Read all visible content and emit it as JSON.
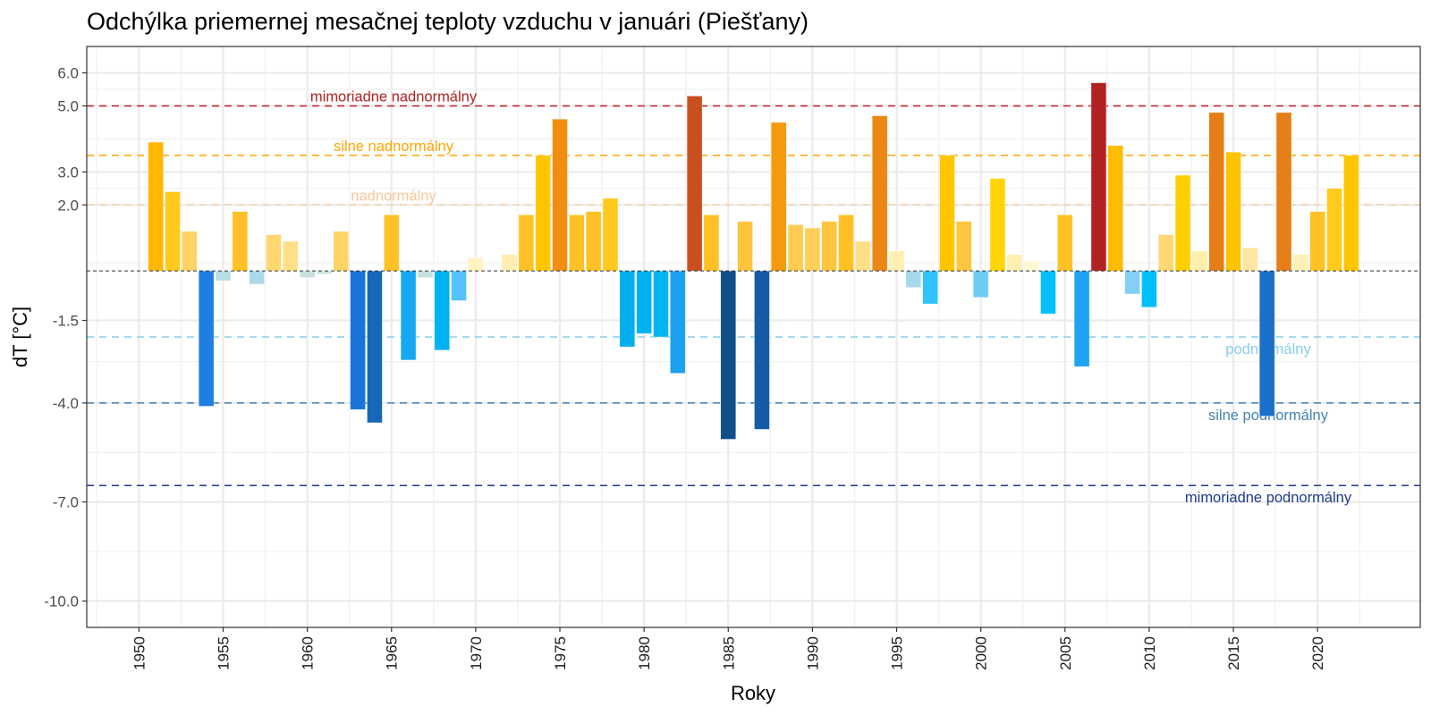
{
  "chart_data": {
    "type": "bar",
    "title": "Odchýlka priemernej mesačnej teploty vzduchu v januári (Piešťany)",
    "xlabel": "Roky",
    "ylabel": "dT [°C]",
    "xlim": [
      1946.9,
      2026.1
    ],
    "ylim": [
      -10.8,
      6.8
    ],
    "grid": true,
    "legend": "none",
    "x_ticks": [
      1950,
      1955,
      1960,
      1965,
      1970,
      1975,
      1980,
      1985,
      1990,
      1995,
      2000,
      2005,
      2010,
      2015,
      2020
    ],
    "y_ticks": [
      6.0,
      5.0,
      3.0,
      2.0,
      -1.5,
      -4.0,
      -7.0,
      -10.0
    ],
    "y_tick_labels": [
      "6.0",
      "5.0",
      "3.0",
      "2.0",
      "-1.5",
      "-4.0",
      "-7.0",
      "-10.0"
    ],
    "y_minor_grid": [
      5.5,
      4.0,
      2.5,
      0.25,
      -2.75,
      -5.5,
      -8.5
    ],
    "x": [
      1951,
      1952,
      1953,
      1954,
      1955,
      1956,
      1957,
      1958,
      1959,
      1960,
      1961,
      1962,
      1963,
      1964,
      1965,
      1966,
      1967,
      1968,
      1969,
      1970,
      1971,
      1972,
      1973,
      1974,
      1975,
      1976,
      1977,
      1978,
      1979,
      1980,
      1981,
      1982,
      1983,
      1984,
      1985,
      1986,
      1987,
      1988,
      1989,
      1990,
      1991,
      1992,
      1993,
      1994,
      1995,
      1996,
      1997,
      1998,
      1999,
      2000,
      2001,
      2002,
      2003,
      2004,
      2005,
      2006,
      2007,
      2008,
      2009,
      2010,
      2011,
      2012,
      2013,
      2014,
      2015,
      2016,
      2017,
      2018,
      2019,
      2020,
      2021,
      2022
    ],
    "values": [
      3.9,
      2.4,
      1.2,
      -4.1,
      -0.3,
      1.8,
      -0.4,
      1.1,
      0.9,
      -0.2,
      -0.1,
      1.2,
      -4.2,
      -4.6,
      1.7,
      -2.7,
      -0.2,
      -2.4,
      -0.9,
      0.4,
      0.0,
      0.5,
      1.7,
      3.5,
      4.6,
      1.7,
      1.8,
      2.2,
      -2.3,
      -1.9,
      -2.0,
      -3.1,
      5.3,
      1.7,
      -5.1,
      1.5,
      -4.8,
      4.5,
      1.4,
      1.3,
      1.5,
      1.7,
      0.9,
      4.7,
      0.6,
      -0.5,
      -1.0,
      3.5,
      1.5,
      -0.8,
      2.8,
      0.5,
      0.3,
      -1.3,
      1.7,
      -2.9,
      5.7,
      3.8,
      -0.7,
      -1.1,
      1.1,
      2.9,
      0.6,
      4.8,
      3.6,
      0.7,
      -4.4,
      4.8,
      0.5,
      1.8,
      2.5,
      3.5
    ],
    "colors": [
      "#FFB700",
      "#FFCA1C",
      "#FFD466",
      "#1E7FE0",
      "#B9DDE6",
      "#FFC125",
      "#ACD9E8",
      "#FFD771",
      "#FFDF88",
      "#C8E0E0",
      "#CCE6DC",
      "#FFD466",
      "#1A73D6",
      "#1767B9",
      "#FFC125",
      "#16A9F2",
      "#C5E0DE",
      "#00B2EE",
      "#54C3FB",
      "#FFF3BF",
      "#FFFFFF",
      "#FFEEB0",
      "#FFC125",
      "#FFC600",
      "#F08E12",
      "#FFC125",
      "#FFC125",
      "#FFC91E",
      "#00AFEC",
      "#00B3EF",
      "#00B5F2",
      "#1BA1F0",
      "#C94F1E",
      "#FFC125",
      "#104E89",
      "#FFC53D",
      "#165BA5",
      "#F5990E",
      "#FFCB50",
      "#FFCE5A",
      "#FFC53D",
      "#FFC125",
      "#FFDF88",
      "#EA8715",
      "#FFEFB1",
      "#A6D8EC",
      "#2FC2FE",
      "#FFC600",
      "#FFC53D",
      "#6ECBF5",
      "#FFD508",
      "#FFF0B2",
      "#FFF7D2",
      "#00BFFF",
      "#FFC125",
      "#1EA4F1",
      "#B22222",
      "#FFBC00",
      "#84CFF3",
      "#00BFFF",
      "#FFD874",
      "#FFD000",
      "#FFEDA9",
      "#E67E18",
      "#FFC400",
      "#FFE6A1",
      "#1A6FC8",
      "#E67E18",
      "#FFF1B5",
      "#FFC125",
      "#FFCC1C",
      "#FFC600"
    ],
    "zero_line": {
      "value": 0,
      "color": "#333333"
    },
    "thresholds": [
      {
        "value": 5.0,
        "label": "mimoriadne nadnormálny",
        "color": "#C0202A",
        "label_color": "#B22222",
        "label_pos": "top-left"
      },
      {
        "value": 3.5,
        "label": "silne nadnormálny",
        "color": "#FFA500",
        "label_color": "#FFA500",
        "label_pos": "top-left"
      },
      {
        "value": 2.0,
        "label": "nadnormálny",
        "color": "#F5D0A6",
        "label_color": "#F5C89A",
        "label_pos": "top-left"
      },
      {
        "value": -2.0,
        "label": "podnormálny",
        "color": "#87CEEB",
        "label_color": "#87CEEB",
        "label_pos": "bottom-right"
      },
      {
        "value": -4.0,
        "label": "silne podnormálny",
        "color": "#4682B4",
        "label_color": "#4682B4",
        "label_pos": "bottom-right"
      },
      {
        "value": -6.5,
        "label": "mimoriadne podnormálny",
        "color": "#1E3A8A",
        "label_color": "#1E3A8A",
        "label_pos": "bottom-right"
      }
    ]
  }
}
